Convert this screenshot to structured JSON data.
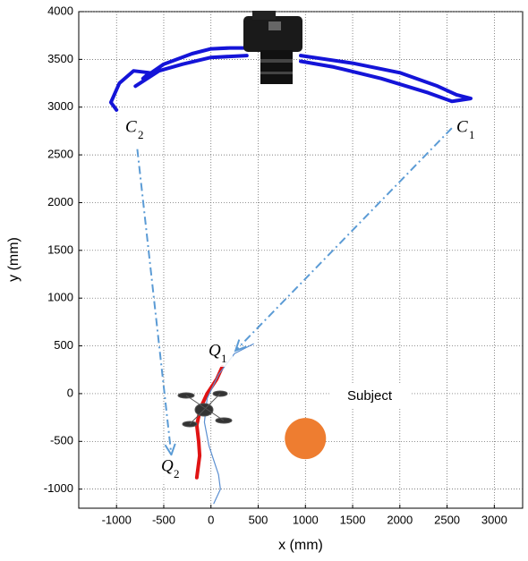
{
  "chart_data": {
    "type": "line",
    "xlabel": "x (mm)",
    "ylabel": "y (mm)",
    "xlim": [
      -1400,
      3300
    ],
    "ylim": [
      -1200,
      4000
    ],
    "xticks": [
      -1000,
      -500,
      0,
      500,
      1000,
      1500,
      2000,
      2500,
      3000
    ],
    "yticks": [
      -1000,
      -500,
      0,
      500,
      1000,
      1500,
      2000,
      2500,
      3000,
      3500,
      4000
    ],
    "grid": true,
    "series": [
      {
        "color": "#1414d8",
        "x": [
          -1000,
          -1060,
          -970,
          -820,
          -650,
          -720,
          -500,
          -200,
          0,
          200,
          380,
          null,
          950,
          1500,
          2000,
          2400,
          2600,
          2750,
          2550,
          2300,
          1800,
          1300,
          950,
          null,
          380,
          0,
          -300,
          -550,
          -800
        ],
        "y": [
          2970,
          3050,
          3250,
          3380,
          3360,
          3300,
          3450,
          3560,
          3610,
          3620,
          3620,
          null,
          3540,
          3460,
          3360,
          3220,
          3130,
          3090,
          3060,
          3150,
          3300,
          3420,
          3480,
          null,
          3540,
          3520,
          3450,
          3380,
          3220
        ]
      },
      {
        "color": "#e01414",
        "x": [
          120,
          60,
          -40,
          -110,
          -150,
          -130,
          -120,
          -150
        ],
        "y": [
          280,
          150,
          0,
          -150,
          -330,
          -500,
          -650,
          -880
        ]
      },
      {
        "color": "#5b8fd1",
        "x": [
          450,
          250,
          80,
          -40,
          -70,
          -20,
          80,
          100,
          30
        ],
        "y": [
          520,
          420,
          200,
          -50,
          -300,
          -550,
          -850,
          -1000,
          -1150
        ]
      }
    ],
    "arrows": [
      {
        "color": "#5b9bd5",
        "x": [
          2550,
          260
        ],
        "y": [
          2780,
          450
        ]
      },
      {
        "color": "#5b9bd5",
        "x": [
          -780,
          -420
        ],
        "y": [
          2560,
          -640
        ]
      }
    ],
    "subject": {
      "x": 1000,
      "y": -470,
      "color": "#ee7d30",
      "label": "Subject"
    },
    "annotations": [
      {
        "text": "C",
        "sub": "1"
      },
      {
        "text": "C",
        "sub": "2"
      },
      {
        "text": "Q",
        "sub": "1"
      },
      {
        "text": "Q",
        "sub": "2"
      }
    ]
  }
}
